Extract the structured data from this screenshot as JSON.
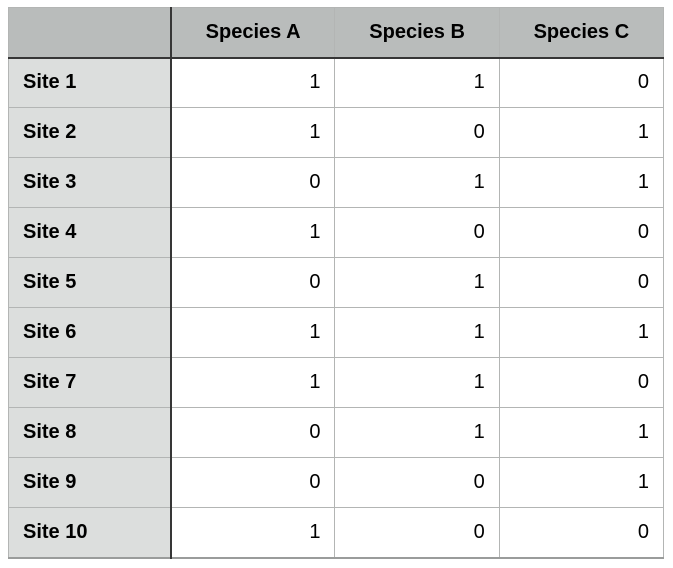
{
  "table": {
    "corner_label": "",
    "columns": [
      "Species A",
      "Species B",
      "Species C"
    ],
    "rows": [
      {
        "label": "Site 1",
        "values": [
          "1",
          "1",
          "0"
        ]
      },
      {
        "label": "Site 2",
        "values": [
          "1",
          "0",
          "1"
        ]
      },
      {
        "label": "Site 3",
        "values": [
          "0",
          "1",
          "1"
        ]
      },
      {
        "label": "Site 4",
        "values": [
          "1",
          "0",
          "0"
        ]
      },
      {
        "label": "Site 5",
        "values": [
          "0",
          "1",
          "0"
        ]
      },
      {
        "label": "Site 6",
        "values": [
          "1",
          "1",
          "1"
        ]
      },
      {
        "label": "Site 7",
        "values": [
          "1",
          "1",
          "0"
        ]
      },
      {
        "label": "Site 8",
        "values": [
          "0",
          "1",
          "1"
        ]
      },
      {
        "label": "Site 9",
        "values": [
          "0",
          "0",
          "1"
        ]
      },
      {
        "label": "Site 10",
        "values": [
          "1",
          "0",
          "0"
        ]
      }
    ]
  },
  "colors": {
    "header_bg": "#b9bcbb",
    "row_header_bg": "#dcdedd",
    "grid_line": "#b3b5b4",
    "dark_line": "#363636",
    "outer_border": "#a6a8a7",
    "bottom_border": "#9a9c9b",
    "cell_bg": "#ffffff",
    "text": "#000000"
  },
  "chart_data": {
    "type": "table",
    "title": "",
    "columns": [
      "Species A",
      "Species B",
      "Species C"
    ],
    "row_labels": [
      "Site 1",
      "Site 2",
      "Site 3",
      "Site 4",
      "Site 5",
      "Site 6",
      "Site 7",
      "Site 8",
      "Site 9",
      "Site 10"
    ],
    "matrix": [
      [
        1,
        1,
        0
      ],
      [
        1,
        0,
        1
      ],
      [
        0,
        1,
        1
      ],
      [
        1,
        0,
        0
      ],
      [
        0,
        1,
        0
      ],
      [
        1,
        1,
        1
      ],
      [
        1,
        1,
        0
      ],
      [
        0,
        1,
        1
      ],
      [
        0,
        0,
        1
      ],
      [
        1,
        0,
        0
      ]
    ]
  }
}
